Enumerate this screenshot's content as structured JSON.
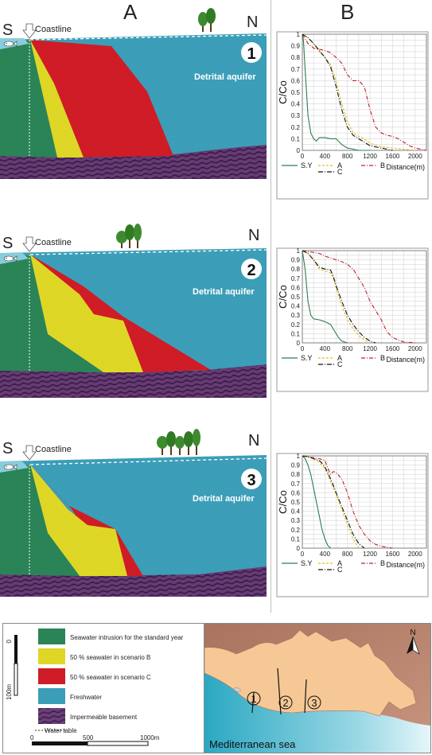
{
  "panel_labels": {
    "left": "A",
    "right": "B"
  },
  "sections": [
    {
      "number": "1",
      "south": "S",
      "north": "N",
      "coastline": "Coastline",
      "aquifer": "Detrital aquifer"
    },
    {
      "number": "2",
      "south": "S",
      "north": "N",
      "coastline": "Coastline",
      "aquifer": "Detrital aquifer"
    },
    {
      "number": "3",
      "south": "S",
      "north": "N",
      "coastline": "Coastline",
      "aquifer": "Detrital aquifer"
    }
  ],
  "colors": {
    "seawater_intrusion": "#2e8a5c",
    "scenario_b": "#e8e02a",
    "scenario_c": "#d8232a",
    "freshwater": "#3fa5c0",
    "basement": "#6b3f78",
    "sea": "#8fd6e6",
    "land": "#f5c896",
    "sea_map": "#3fb4c8"
  },
  "chart_data": [
    {
      "type": "line",
      "ylabel": "C/Co",
      "xlabel": "Distance(m)",
      "xlim": [
        0,
        2200
      ],
      "ylim": [
        0,
        1
      ],
      "xticks": [
        "0",
        "400",
        "800",
        "1200",
        "1600",
        "2000"
      ],
      "yticks": [
        "0",
        "0.1",
        "0.2",
        "0.3",
        "0.4",
        "0.5",
        "0.6",
        "0.7",
        "0.8",
        "0.9",
        "1"
      ],
      "series": [
        {
          "name": "S.Y",
          "color": "#2e7d50",
          "x": [
            0,
            20,
            50,
            100,
            150,
            200,
            250,
            300,
            400,
            500,
            600,
            700,
            800,
            900,
            1000,
            1200
          ],
          "y": [
            1,
            0.95,
            0.7,
            0.3,
            0.15,
            0.1,
            0.08,
            0.11,
            0.11,
            0.1,
            0.1,
            0.05,
            0.02,
            0.01,
            0,
            0
          ]
        },
        {
          "name": "A",
          "color": "#e0c020",
          "x": [
            0,
            100,
            200,
            300,
            400,
            500,
            600,
            700,
            800,
            900,
            1000,
            1100,
            1200,
            1400,
            1600,
            1800,
            2000
          ],
          "y": [
            1,
            0.97,
            0.92,
            0.85,
            0.8,
            0.74,
            0.6,
            0.4,
            0.25,
            0.15,
            0.12,
            0.1,
            0.06,
            0.03,
            0.02,
            0.01,
            0
          ]
        },
        {
          "name": "B",
          "color": "#c0202a",
          "x": [
            0,
            100,
            200,
            300,
            400,
            500,
            600,
            700,
            800,
            900,
            1000,
            1100,
            1200,
            1300,
            1400,
            1500,
            1600,
            1700,
            1800,
            1900,
            2000,
            2200
          ],
          "y": [
            1,
            0.92,
            0.88,
            0.87,
            0.86,
            0.84,
            0.8,
            0.75,
            0.65,
            0.6,
            0.6,
            0.55,
            0.35,
            0.2,
            0.15,
            0.13,
            0.12,
            0.1,
            0.07,
            0.04,
            0.02,
            0
          ]
        },
        {
          "name": "C",
          "color": "#111111",
          "x": [
            0,
            100,
            200,
            300,
            400,
            500,
            600,
            700,
            800,
            900,
            1000,
            1100,
            1200,
            1400,
            1600
          ],
          "y": [
            1,
            0.97,
            0.92,
            0.86,
            0.8,
            0.72,
            0.55,
            0.35,
            0.2,
            0.13,
            0.1,
            0.07,
            0.04,
            0.02,
            0
          ]
        }
      ]
    },
    {
      "type": "line",
      "ylabel": "C/Co",
      "xlabel": "Distance(m)",
      "xlim": [
        0,
        2200
      ],
      "ylim": [
        0,
        1
      ],
      "xticks": [
        "0",
        "400",
        "800",
        "1200",
        "1600",
        "2000"
      ],
      "yticks": [
        "0",
        "0.1",
        "0.2",
        "0.3",
        "0.4",
        "0.5",
        "0.6",
        "0.7",
        "0.8",
        "0.9",
        "1"
      ],
      "series": [
        {
          "name": "S.Y",
          "color": "#2e7d50",
          "x": [
            0,
            50,
            100,
            150,
            200,
            300,
            400,
            500,
            550,
            600,
            650,
            700,
            800
          ],
          "y": [
            1,
            0.8,
            0.45,
            0.3,
            0.26,
            0.25,
            0.23,
            0.2,
            0.15,
            0.1,
            0.05,
            0.02,
            0
          ]
        },
        {
          "name": "A",
          "color": "#e0c020",
          "x": [
            0,
            100,
            200,
            300,
            400,
            500,
            550,
            600,
            700,
            800,
            900,
            1000,
            1100,
            1200
          ],
          "y": [
            1,
            0.97,
            0.9,
            0.8,
            0.78,
            0.76,
            0.7,
            0.6,
            0.4,
            0.25,
            0.15,
            0.08,
            0.03,
            0
          ]
        },
        {
          "name": "B",
          "color": "#c0202a",
          "x": [
            0,
            100,
            200,
            300,
            400,
            500,
            600,
            700,
            800,
            900,
            1000,
            1100,
            1200,
            1300,
            1400,
            1500,
            1600,
            1700,
            1800,
            2000
          ],
          "y": [
            1,
            0.99,
            0.98,
            0.97,
            0.94,
            0.92,
            0.9,
            0.88,
            0.85,
            0.8,
            0.7,
            0.6,
            0.45,
            0.35,
            0.25,
            0.12,
            0.06,
            0.03,
            0.01,
            0
          ]
        },
        {
          "name": "C",
          "color": "#111111",
          "x": [
            0,
            100,
            200,
            300,
            400,
            500,
            550,
            600,
            700,
            800,
            900,
            1000,
            1100,
            1200,
            1300
          ],
          "y": [
            1,
            0.97,
            0.9,
            0.82,
            0.8,
            0.79,
            0.72,
            0.62,
            0.45,
            0.3,
            0.2,
            0.12,
            0.06,
            0.02,
            0
          ]
        }
      ]
    },
    {
      "type": "line",
      "ylabel": "C/Co",
      "xlabel": "Distance(m)",
      "xlim": [
        0,
        2200
      ],
      "ylim": [
        0,
        1
      ],
      "xticks": [
        "0",
        "400",
        "800",
        "1200",
        "1600",
        "2000"
      ],
      "yticks": [
        "0",
        "0.1",
        "0.2",
        "0.3",
        "0.4",
        "0.5",
        "0.6",
        "0.7",
        "0.8",
        "0.9",
        "1"
      ],
      "series": [
        {
          "name": "S.Y",
          "color": "#2e7d50",
          "x": [
            0,
            50,
            100,
            150,
            200,
            250,
            300,
            350,
            400,
            450,
            500
          ],
          "y": [
            1,
            0.97,
            0.9,
            0.8,
            0.65,
            0.5,
            0.35,
            0.2,
            0.1,
            0.03,
            0
          ]
        },
        {
          "name": "A",
          "color": "#e0c020",
          "x": [
            0,
            100,
            200,
            300,
            400,
            450,
            500,
            550,
            600,
            700,
            800,
            900,
            1000
          ],
          "y": [
            1,
            0.99,
            0.97,
            0.93,
            0.86,
            0.8,
            0.72,
            0.65,
            0.58,
            0.42,
            0.25,
            0.1,
            0
          ]
        },
        {
          "name": "B",
          "color": "#c0202a",
          "x": [
            0,
            100,
            200,
            300,
            400,
            450,
            500,
            550,
            600,
            700,
            800,
            900,
            1000,
            1100,
            1200,
            1300,
            1400,
            1600
          ],
          "y": [
            1,
            0.99,
            0.98,
            0.97,
            0.95,
            0.87,
            0.8,
            0.83,
            0.82,
            0.75,
            0.6,
            0.4,
            0.25,
            0.15,
            0.08,
            0.04,
            0.02,
            0
          ]
        },
        {
          "name": "C",
          "color": "#111111",
          "x": [
            0,
            100,
            200,
            300,
            350,
            400,
            450,
            500,
            550,
            600,
            700,
            800,
            900,
            1000,
            1100
          ],
          "y": [
            1,
            0.99,
            0.97,
            0.95,
            0.92,
            0.88,
            0.82,
            0.75,
            0.68,
            0.6,
            0.45,
            0.3,
            0.15,
            0.05,
            0
          ]
        }
      ]
    }
  ],
  "legend": {
    "items": [
      {
        "key": "seawater_intrusion",
        "label": "Seawater intrusion for the standard year"
      },
      {
        "key": "scenario_b",
        "label": "50 % seawater in scenario B"
      },
      {
        "key": "scenario_c",
        "label": "50 % seawater in scenario C"
      },
      {
        "key": "freshwater",
        "label": "Freshwater"
      },
      {
        "key": "basement",
        "label": "Impermeable basement"
      }
    ],
    "water_table": "Water table",
    "vertical_scale": {
      "top": "0",
      "bottom": "100m"
    },
    "horizontal_scale": [
      "0",
      "500",
      "1000m"
    ]
  },
  "map": {
    "north": "N",
    "sea_label": "Mediterranean sea",
    "markers": [
      "1",
      "2",
      "3"
    ]
  }
}
